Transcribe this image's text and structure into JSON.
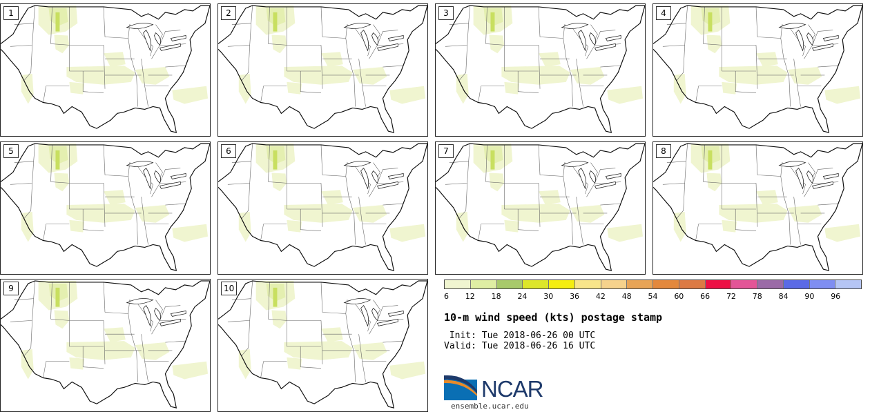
{
  "members": [
    "1",
    "2",
    "3",
    "4",
    "5",
    "6",
    "7",
    "8",
    "9",
    "10"
  ],
  "colorbar": {
    "colors": [
      "#f0f5d0",
      "#dfeea3",
      "#a8c96a",
      "#dde62a",
      "#f5ee10",
      "#f8e58a",
      "#f6d28c",
      "#e8a456",
      "#e3883c",
      "#dc7a44",
      "#ed1045",
      "#e35597",
      "#9b6aa7",
      "#5b6ae6",
      "#7f8ef2",
      "#b5c5f5"
    ],
    "ticks": [
      "6",
      "12",
      "18",
      "24",
      "30",
      "36",
      "42",
      "48",
      "54",
      "60",
      "66",
      "72",
      "78",
      "84",
      "90",
      "96"
    ]
  },
  "title": "10-m wind speed (kts) postage stamp",
  "init": " Init: Tue 2018-06-26 00 UTC",
  "valid": "Valid: Tue 2018-06-26 16 UTC",
  "logo": {
    "text": "NCAR",
    "site": "ensemble.ucar.edu"
  }
}
